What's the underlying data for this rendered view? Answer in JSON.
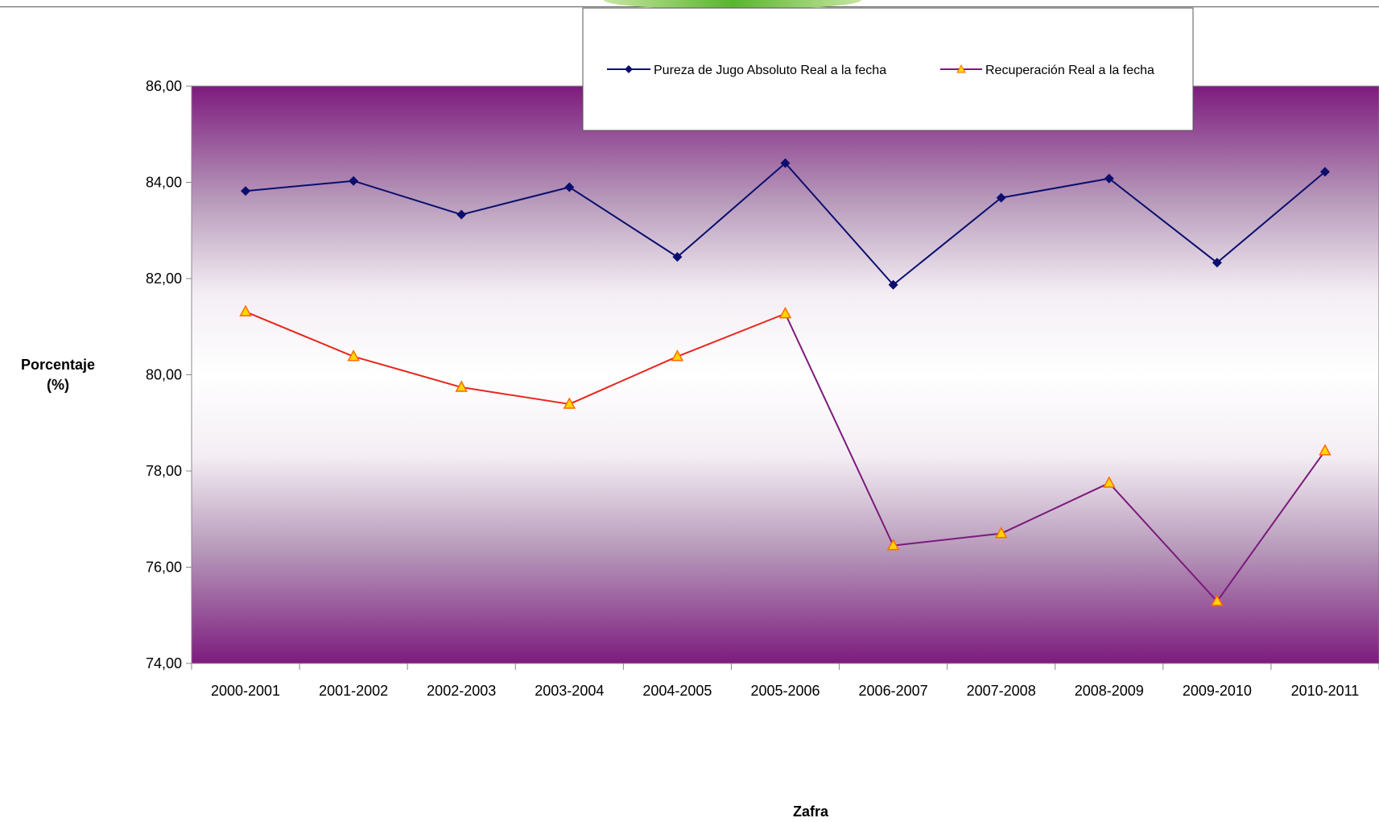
{
  "chart_data": {
    "type": "line",
    "categories": [
      "2000-2001",
      "2001-2002",
      "2002-2003",
      "2003-2004",
      "2004-2005",
      "2005-2006",
      "2006-2007",
      "2007-2008",
      "2008-2009",
      "2009-2010",
      "2010-2011"
    ],
    "series": [
      {
        "name": "Pureza de Jugo Absoluto Real a la fecha",
        "color": "#0b0e6e",
        "marker": "diamond",
        "values": [
          83.82,
          84.03,
          83.33,
          83.9,
          82.45,
          84.4,
          81.87,
          83.68,
          84.08,
          82.33,
          84.22
        ]
      },
      {
        "name": "Recuperación Real a la fecha",
        "color": "#7b1a7b",
        "color_top_segments": "#e8261e",
        "marker": "triangle",
        "marker_fill": "#ffd700",
        "marker_stroke": "#ff6a00",
        "values": [
          81.31,
          80.38,
          79.74,
          79.39,
          80.38,
          81.27,
          76.45,
          76.7,
          77.75,
          75.29,
          78.42
        ]
      }
    ],
    "ylim": [
      74,
      86
    ],
    "yticks": [
      "74,00",
      "76,00",
      "78,00",
      "80,00",
      "82,00",
      "84,00",
      "86,00"
    ],
    "xlabel": "Zafra",
    "ylabel_line1": "Porcentaje",
    "ylabel_line2": "(%)",
    "grid": false,
    "legend_position": "top",
    "plot_background": "purple-white-purple vertical gradient"
  }
}
